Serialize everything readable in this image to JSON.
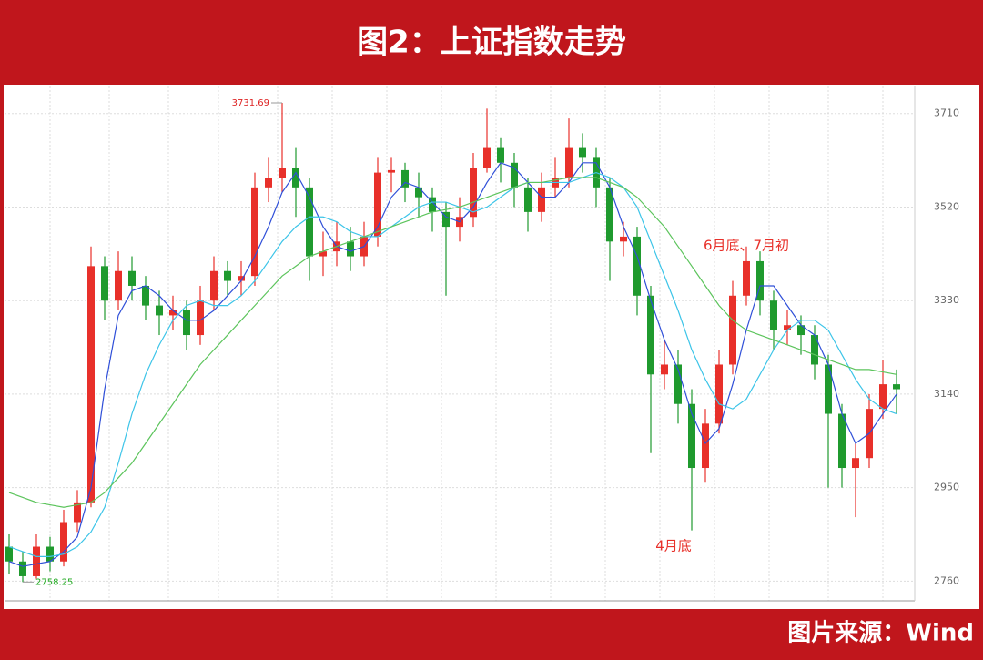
{
  "chart_data": {
    "type": "candlestick",
    "title": "图2：上证指数走势",
    "source": "图片来源：Wind",
    "open": [
      2830,
      2800,
      2770,
      2830,
      2800,
      2880,
      2920,
      3400,
      3330,
      3390,
      3360,
      3320,
      3300,
      3310,
      3260,
      3330,
      3390,
      3370,
      3380,
      3560,
      3580,
      3600,
      3560,
      3420,
      3430,
      3450,
      3420,
      3460,
      3590,
      3595,
      3560,
      3540,
      3510,
      3480,
      3500,
      3600,
      3640,
      3610,
      3560,
      3510,
      3560,
      3580,
      3640,
      3620,
      3560,
      3450,
      3460,
      3340,
      3180,
      3200,
      3120,
      2990,
      3080,
      3200,
      3340,
      3410,
      3330,
      3270,
      3280,
      3260,
      3200,
      3100,
      2990,
      3010,
      3110,
      3160
    ],
    "high": [
      2855,
      2820,
      2855,
      2850,
      2905,
      2945,
      3440,
      3420,
      3430,
      3420,
      3380,
      3350,
      3340,
      3330,
      3360,
      3420,
      3410,
      3410,
      3590,
      3620,
      3731.69,
      3640,
      3580,
      3470,
      3490,
      3480,
      3490,
      3620,
      3620,
      3610,
      3590,
      3560,
      3530,
      3540,
      3630,
      3720,
      3660,
      3630,
      3580,
      3590,
      3620,
      3700,
      3670,
      3640,
      3580,
      3490,
      3480,
      3360,
      3250,
      3230,
      3150,
      3110,
      3230,
      3370,
      3440,
      3430,
      3350,
      3310,
      3300,
      3280,
      3220,
      3120,
      3040,
      3140,
      3210,
      3190
    ],
    "low": [
      2775,
      2758.25,
      2765,
      2780,
      2790,
      2860,
      2910,
      3290,
      3310,
      3330,
      3290,
      3260,
      3270,
      3230,
      3240,
      3310,
      3340,
      3340,
      3360,
      3530,
      3550,
      3500,
      3370,
      3380,
      3400,
      3390,
      3400,
      3440,
      3550,
      3530,
      3500,
      3470,
      3340,
      3450,
      3480,
      3590,
      3570,
      3520,
      3470,
      3490,
      3540,
      3560,
      3590,
      3520,
      3370,
      3420,
      3300,
      3020,
      3150,
      3080,
      2863,
      2960,
      3060,
      3180,
      3320,
      3300,
      3230,
      3240,
      3220,
      3170,
      2950,
      2950,
      2890,
      2990,
      3090,
      3100
    ],
    "close": [
      2800,
      2770,
      2830,
      2800,
      2880,
      2920,
      3400,
      3330,
      3390,
      3360,
      3320,
      3300,
      3310,
      3260,
      3330,
      3390,
      3370,
      3380,
      3560,
      3580,
      3600,
      3560,
      3420,
      3430,
      3450,
      3420,
      3460,
      3590,
      3595,
      3560,
      3540,
      3510,
      3480,
      3500,
      3600,
      3640,
      3610,
      3560,
      3510,
      3560,
      3580,
      3640,
      3620,
      3560,
      3450,
      3460,
      3340,
      3180,
      3200,
      3120,
      2990,
      3080,
      3200,
      3340,
      3410,
      3330,
      3270,
      3280,
      3260,
      3200,
      3100,
      2990,
      3010,
      3110,
      3160,
      3150
    ],
    "up_color": "#e8302a",
    "down_color": "#1f9a2e",
    "series": [
      {
        "color": "#2f4fd8",
        "values": [
          2800,
          2790,
          2795,
          2800,
          2820,
          2850,
          2950,
          3150,
          3300,
          3350,
          3360,
          3340,
          3310,
          3290,
          3290,
          3310,
          3340,
          3370,
          3420,
          3480,
          3550,
          3590,
          3540,
          3480,
          3440,
          3430,
          3440,
          3480,
          3540,
          3570,
          3560,
          3530,
          3500,
          3490,
          3520,
          3570,
          3610,
          3600,
          3570,
          3540,
          3540,
          3570,
          3610,
          3610,
          3560,
          3480,
          3420,
          3330,
          3250,
          3190,
          3100,
          3040,
          3070,
          3160,
          3270,
          3360,
          3360,
          3320,
          3280,
          3260,
          3200,
          3100,
          3040,
          3060,
          3100,
          3140
        ]
      },
      {
        "color": "#3cc4e8",
        "values": [
          2830,
          2820,
          2810,
          2810,
          2815,
          2830,
          2860,
          2910,
          3000,
          3100,
          3180,
          3240,
          3290,
          3320,
          3330,
          3320,
          3320,
          3340,
          3370,
          3410,
          3450,
          3480,
          3500,
          3500,
          3490,
          3470,
          3460,
          3460,
          3480,
          3500,
          3520,
          3530,
          3530,
          3520,
          3510,
          3520,
          3540,
          3560,
          3570,
          3570,
          3570,
          3570,
          3580,
          3590,
          3580,
          3560,
          3520,
          3450,
          3380,
          3310,
          3230,
          3170,
          3120,
          3110,
          3130,
          3180,
          3230,
          3270,
          3290,
          3290,
          3270,
          3220,
          3170,
          3130,
          3110,
          3100
        ]
      },
      {
        "color": "#5cc45c",
        "values": [
          2940,
          2930,
          2920,
          2915,
          2910,
          2915,
          2920,
          2940,
          2970,
          3000,
          3040,
          3080,
          3120,
          3160,
          3200,
          3230,
          3260,
          3290,
          3320,
          3350,
          3380,
          3400,
          3420,
          3430,
          3440,
          3450,
          3460,
          3470,
          3480,
          3490,
          3500,
          3510,
          3515,
          3520,
          3530,
          3540,
          3550,
          3560,
          3570,
          3570,
          3575,
          3580,
          3580,
          3580,
          3570,
          3560,
          3540,
          3510,
          3480,
          3440,
          3400,
          3360,
          3320,
          3290,
          3270,
          3260,
          3250,
          3240,
          3230,
          3220,
          3210,
          3200,
          3190,
          3190,
          3185,
          3180
        ]
      }
    ],
    "annotations": [
      "6月底、7月初",
      "4月底"
    ],
    "ylim": [
      2720,
      3765
    ],
    "yticks": [
      2760,
      2950,
      3140,
      3330,
      3520,
      3710
    ],
    "grid": true
  }
}
